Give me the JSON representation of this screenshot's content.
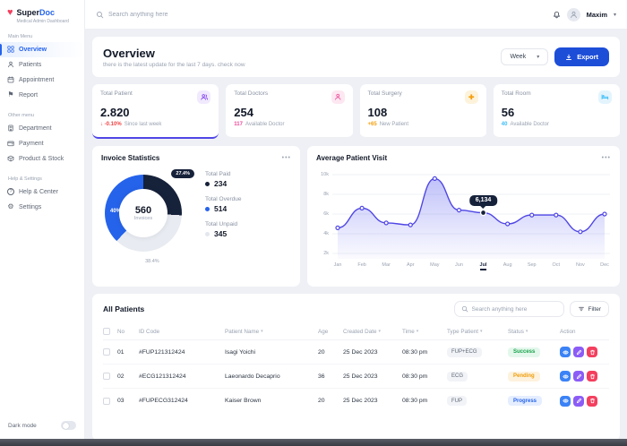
{
  "app": {
    "logo_title_a": "Super",
    "logo_title_b": "Doc",
    "logo_subtitle": "Medical Admin Dashboard",
    "dark_mode_label": "Dark mode"
  },
  "icons": {
    "heart": "♥",
    "flag": "⚑",
    "gear": "⚙",
    "chevron": "▾",
    "sort": "▾",
    "dots": "•••",
    "arrow_down": "↓",
    "question": "?"
  },
  "topbar": {
    "search_placeholder": "Search anything here",
    "user_name": "Maxim"
  },
  "sidebar": {
    "section_main": "Main Menu",
    "section_other": "Other menu",
    "section_help": "Help & Settings",
    "items": {
      "overview": "Overview",
      "patients": "Patients",
      "appointment": "Appointment",
      "report": "Report",
      "department": "Department",
      "payment": "Payment",
      "product": "Product & Stock",
      "help": "Help & Center",
      "settings": "Settings"
    }
  },
  "overview_header": {
    "title": "Overview",
    "subtitle": "there is the latest update for the last 7 days. check now",
    "period": "Week",
    "export": "Export"
  },
  "stats": [
    {
      "label": "Total Patient",
      "value": "2.820",
      "delta": "-0.10%",
      "note": "Since last week",
      "icon_color": "#7c3aed",
      "chip_bg": "#f1eafe",
      "delta_color": "#ef4444",
      "accent": "#4f46e5"
    },
    {
      "label": "Total Doctors",
      "value": "254",
      "delta": "117",
      "note": "Available Doctor",
      "icon_color": "#ec4899",
      "chip_bg": "#fde7f1",
      "delta_color": "#ec4899",
      "accent": "#eef0f4"
    },
    {
      "label": "Total Surgery",
      "value": "108",
      "delta": "+65",
      "note": "New Patient",
      "icon_color": "#f59e0b",
      "chip_bg": "#fdf3dc",
      "delta_color": "#f59e0b",
      "accent": "#eef0f4"
    },
    {
      "label": "Total Room",
      "value": "56",
      "delta": "40",
      "note": "Available Doctor",
      "icon_color": "#38bdf8",
      "chip_bg": "#e3f4fd",
      "delta_color": "#38bdf8",
      "accent": "#eef0f4"
    }
  ],
  "invoice": {
    "title": "Invoice Statistics",
    "center_value": "560",
    "center_label": "Invoices",
    "legend": [
      {
        "label": "Total Paid",
        "value": "234",
        "color": "#16213a"
      },
      {
        "label": "Total Overdue",
        "value": "514",
        "color": "#2563eb"
      },
      {
        "label": "Total Unpaid",
        "value": "345",
        "color": "#e3e7ee"
      }
    ],
    "chart_data": {
      "type": "pie",
      "segments": [
        {
          "label": "27.4%",
          "value": 27.4,
          "color": "#16213a"
        },
        {
          "label": "38.4%",
          "value": 38.4,
          "color": "#e8ebf1"
        },
        {
          "label": "40%",
          "value": 40,
          "color": "#2563eb"
        }
      ]
    }
  },
  "visits": {
    "title": "Average Patient Visit",
    "tooltip": "6,134",
    "chart_data": {
      "type": "area",
      "x": [
        "Jan",
        "Feb",
        "Mar",
        "Apr",
        "May",
        "Jun",
        "Jul",
        "Aug",
        "Sep",
        "Oct",
        "Nov",
        "Dec"
      ],
      "values": [
        4600,
        6600,
        5100,
        4900,
        9600,
        6400,
        6134,
        5000,
        5900,
        5900,
        4200,
        6000
      ],
      "y_ticks": [
        "10k",
        "8k",
        "6k",
        "4k",
        "2k"
      ],
      "ylim": [
        2000,
        10000
      ],
      "highlight_index": 6,
      "line_color": "#4f46e5"
    }
  },
  "patients_table": {
    "title": "All Patients",
    "search_placeholder": "Search anything here",
    "filter_label": "Filter",
    "columns": {
      "no": "No",
      "id": "ID Code",
      "name": "Patient Name",
      "age": "Age",
      "date": "Created Date",
      "time": "Time",
      "type": "Type Patient",
      "status": "Status",
      "action": "Action"
    },
    "rows": [
      {
        "no": "01",
        "id": "#FUP121312424",
        "name": "Isagi Yoichi",
        "age": "20",
        "date": "25 Dec 2023",
        "time": "08:30 pm",
        "type": "FUP+ECG",
        "status": "Success"
      },
      {
        "no": "02",
        "id": "#ECG121312424",
        "name": "Laeonardo Decaprio",
        "age": "36",
        "date": "25 Dec 2023",
        "time": "08:30 pm",
        "type": "ECG",
        "status": "Pending"
      },
      {
        "no": "03",
        "id": "#FUPECG312424",
        "name": "Kaiser Brown",
        "age": "20",
        "date": "25 Dec 2023",
        "time": "08:30 pm",
        "type": "FUP",
        "status": "Progress"
      }
    ]
  },
  "palette": {
    "primary": "#1d4ed8",
    "success": "#17a34a",
    "success_bg": "#e4f7ec",
    "pending": "#ee9d0b",
    "pending_bg": "#fdf2dd",
    "progress": "#2563eb",
    "progress_bg": "#e5eeff",
    "danger": "#ef4444"
  }
}
